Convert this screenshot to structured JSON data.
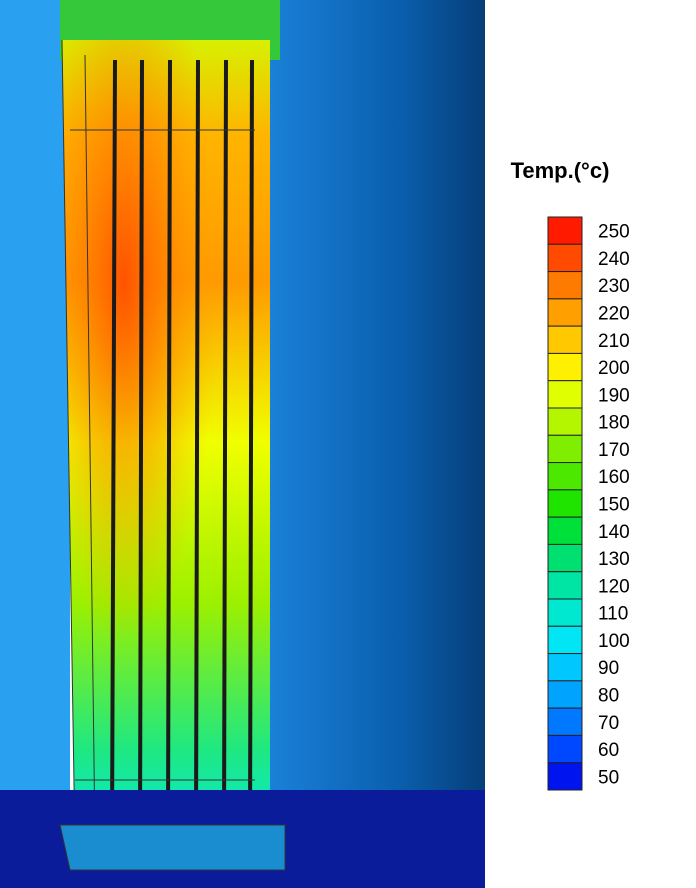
{
  "legend": {
    "title": "Temp.(°c)",
    "ticks": [
      250,
      240,
      230,
      220,
      210,
      200,
      190,
      180,
      170,
      160,
      150,
      140,
      130,
      120,
      110,
      100,
      90,
      80,
      70,
      60,
      50
    ],
    "colors": [
      "#ff1a00",
      "#ff4a00",
      "#ff7a00",
      "#ffa000",
      "#ffc800",
      "#fff000",
      "#e0ff00",
      "#b4f500",
      "#80ee00",
      "#4ce800",
      "#1ee400",
      "#00e03a",
      "#00e070",
      "#00e4a4",
      "#00e8d0",
      "#00e6f4",
      "#00c8ff",
      "#00a4ff",
      "#0078ff",
      "#0048ff",
      "#0014f0"
    ]
  }
}
